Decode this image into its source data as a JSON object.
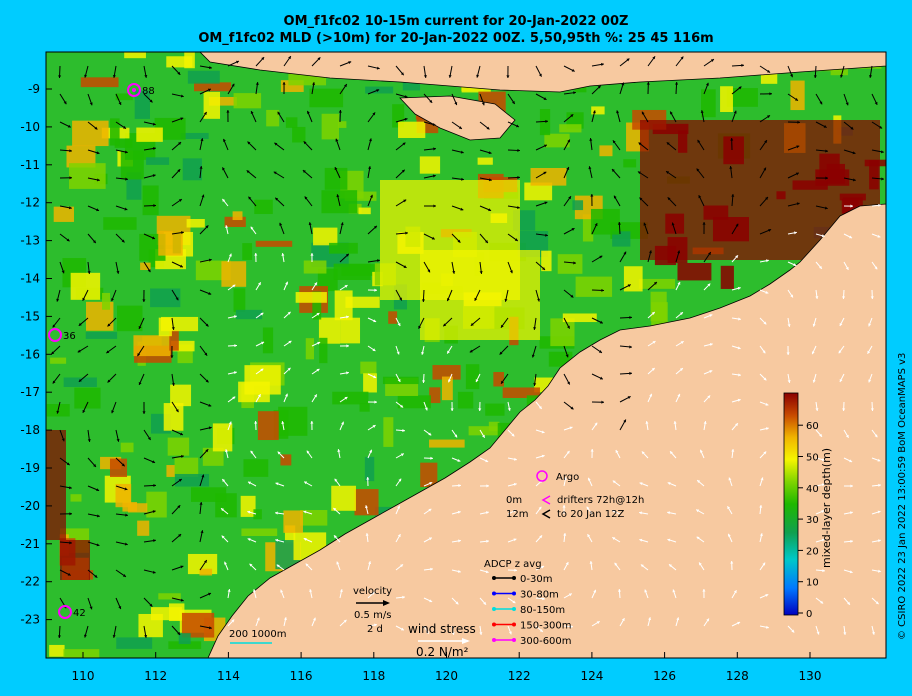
{
  "title": {
    "line1": "OM_f1fc02 10-15m current for 20-Jan-2022 00Z",
    "line2": "OM_f1fc02 MLD (>10m) for 20-Jan-2022 00Z. 5,50,95th %: 25   45  116m"
  },
  "axes": {
    "lat_ticks": [
      "-9",
      "-10",
      "-11",
      "-12",
      "-13",
      "-14",
      "-15",
      "-16",
      "-17",
      "-18",
      "-19",
      "-20",
      "-21",
      "-22",
      "-23"
    ],
    "lon_ticks": [
      "110",
      "112",
      "114",
      "116",
      "118",
      "120",
      "122",
      "124",
      "126",
      "128",
      "130"
    ]
  },
  "colorbar": {
    "label": "mixed-layer depth(m)",
    "ticks": [
      "60",
      "50",
      "40",
      "30",
      "20",
      "10",
      "0"
    ],
    "colors": [
      "#8b0000",
      "#c84a00",
      "#f0b400",
      "#f5f500",
      "#7fd400",
      "#1fb800",
      "#10a050",
      "#00c8c8",
      "#0077ff",
      "#0000c0"
    ]
  },
  "markers": [
    {
      "label": "88"
    },
    {
      "label": "36"
    },
    {
      "label": "42"
    }
  ],
  "legend": {
    "argo": "Argo",
    "drifter_0m": "0m",
    "drifter_12m": "12m",
    "drifters_line1": "drifters 72h@12h",
    "drifters_line2": "to 20 Jan 12Z",
    "adcp_title": "ADCP z avg",
    "adcp": [
      {
        "label": "0-30m",
        "color": "#000000"
      },
      {
        "label": "30-80m",
        "color": "#0000ff"
      },
      {
        "label": "80-150m",
        "color": "#00dddd"
      },
      {
        "label": "150-300m",
        "color": "#ff0000"
      },
      {
        "label": "300-600m",
        "color": "#ff00ff"
      }
    ],
    "velocity_title": "velocity",
    "velocity_speed": "0.5 m/s",
    "velocity_time": "2 d",
    "isobaths": "200  1000m",
    "wind_stress": "wind stress",
    "wind_value": "0.2 N/m²"
  },
  "credit": "© CSIRO 2022   23 Jan 2022 13:00:59 BoM OceanMAPS v3"
}
